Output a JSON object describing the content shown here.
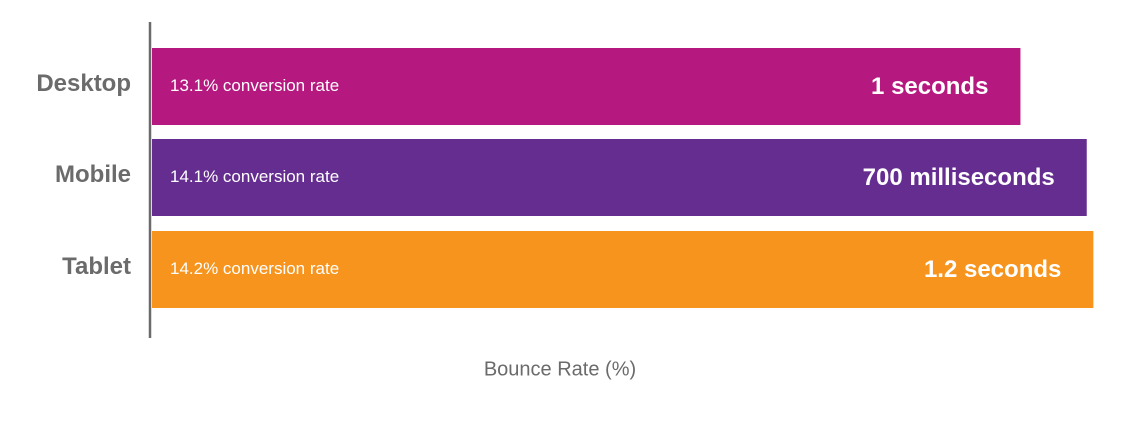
{
  "chart_data": {
    "type": "bar",
    "orientation": "horizontal",
    "categories": [
      "Desktop",
      "Mobile",
      "Tablet"
    ],
    "values": [
      13.1,
      14.1,
      14.2
    ],
    "value_labels": [
      "13.1% conversion rate",
      "14.1% conversion rate",
      "14.2% conversion rate"
    ],
    "annotations": [
      "1 seconds",
      "700 milliseconds",
      "1.2 seconds"
    ],
    "colors": [
      "#b5187f",
      "#652d90",
      "#f7941d"
    ],
    "xlabel": "Bounce Rate (%)",
    "xlim": [
      0,
      14.3
    ]
  }
}
